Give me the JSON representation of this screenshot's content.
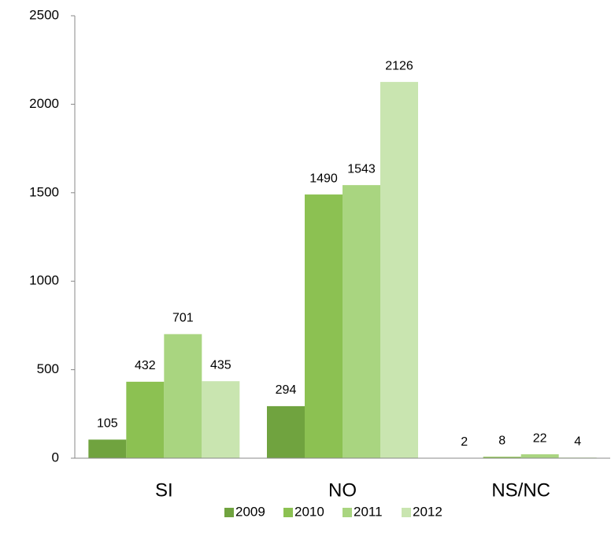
{
  "chart_data": {
    "type": "bar",
    "categories": [
      "SI",
      "NO",
      "NS/NC"
    ],
    "series": [
      {
        "name": "2009",
        "color": "#70a33f",
        "values": [
          105,
          294,
          2
        ]
      },
      {
        "name": "2010",
        "color": "#8cc152",
        "values": [
          432,
          1490,
          8
        ]
      },
      {
        "name": "2011",
        "color": "#a9d580",
        "values": [
          701,
          1543,
          22
        ]
      },
      {
        "name": "2012",
        "color": "#c9e5b0",
        "values": [
          435,
          2126,
          4
        ]
      }
    ],
    "ylim": [
      0,
      2500
    ],
    "yticks": [
      0,
      500,
      1000,
      1500,
      2000,
      2500
    ],
    "grid": false,
    "legend": "bottom"
  }
}
